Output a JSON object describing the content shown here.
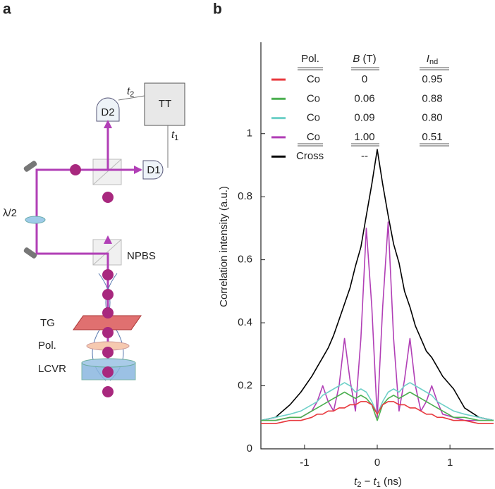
{
  "panel_labels": [
    "a",
    "b"
  ],
  "panel_a": {
    "detector_2": "D2",
    "detector_1": "D1",
    "time_tagger": "TT",
    "t2": {
      "t": "t",
      "sub": "2"
    },
    "t1": {
      "t": "t",
      "sub": "1"
    },
    "half_wave_plate": "λ/2",
    "beam_splitter": "NPBS",
    "grating": "TG",
    "polarizer": "Pol.",
    "lcvr": "LCVR"
  },
  "chart_data": {
    "type": "line",
    "xlabel": {
      "t2": "t",
      "t2_sub": "2",
      "minus": " − ",
      "t1": "t",
      "t1_sub": "1",
      "unit": " (ns)"
    },
    "ylabel": "Correlation intensity (a.u.)",
    "legend_header": {
      "pol": "Pol.",
      "field": "B",
      "field_unit": " (T)",
      "ind": "I",
      "ind_sub": "nd"
    },
    "x": [
      -1.6,
      -1.4,
      -1.2,
      -1.05,
      -0.9,
      -0.825,
      -0.75,
      -0.675,
      -0.6,
      -0.525,
      -0.45,
      -0.375,
      -0.3,
      -0.225,
      -0.15,
      -0.075,
      0,
      0.075,
      0.15,
      0.225,
      0.3,
      0.375,
      0.45,
      0.525,
      0.6,
      0.675,
      0.75,
      0.825,
      0.9,
      1.05,
      1.2,
      1.4,
      1.6
    ],
    "series": [
      {
        "name": "Co",
        "field": "0",
        "i_nd": "0.95",
        "color": "#e8383d",
        "values": [
          0.08,
          0.08,
          0.09,
          0.09,
          0.1,
          0.11,
          0.11,
          0.12,
          0.12,
          0.13,
          0.13,
          0.14,
          0.14,
          0.15,
          0.15,
          0.14,
          0.11,
          0.14,
          0.15,
          0.15,
          0.14,
          0.14,
          0.13,
          0.13,
          0.12,
          0.11,
          0.11,
          0.1,
          0.1,
          0.09,
          0.09,
          0.08,
          0.08
        ]
      },
      {
        "name": "Co",
        "field": "0.06",
        "i_nd": "0.88",
        "color": "#4caf50",
        "values": [
          0.09,
          0.09,
          0.1,
          0.1,
          0.12,
          0.13,
          0.14,
          0.15,
          0.16,
          0.17,
          0.18,
          0.17,
          0.16,
          0.17,
          0.16,
          0.14,
          0.09,
          0.14,
          0.16,
          0.17,
          0.16,
          0.17,
          0.18,
          0.17,
          0.16,
          0.15,
          0.14,
          0.13,
          0.12,
          0.1,
          0.1,
          0.09,
          0.09
        ]
      },
      {
        "name": "Co",
        "field": "0.09",
        "i_nd": "0.80",
        "color": "#6fd0c8",
        "values": [
          0.09,
          0.1,
          0.11,
          0.12,
          0.14,
          0.15,
          0.17,
          0.18,
          0.19,
          0.2,
          0.21,
          0.2,
          0.18,
          0.19,
          0.18,
          0.15,
          0.11,
          0.15,
          0.18,
          0.19,
          0.18,
          0.2,
          0.21,
          0.2,
          0.19,
          0.18,
          0.17,
          0.15,
          0.14,
          0.12,
          0.11,
          0.1,
          0.09
        ]
      },
      {
        "name": "Co",
        "field": "1.00",
        "i_nd": "0.51",
        "color": "#b13fb6",
        "values": [
          0.09,
          0.09,
          0.1,
          0.1,
          0.12,
          0.15,
          0.2,
          0.15,
          0.12,
          0.2,
          0.35,
          0.22,
          0.12,
          0.35,
          0.7,
          0.45,
          0.1,
          0.45,
          0.72,
          0.35,
          0.12,
          0.22,
          0.35,
          0.2,
          0.12,
          0.15,
          0.2,
          0.15,
          0.11,
          0.1,
          0.09,
          0.09,
          0.09
        ]
      },
      {
        "name": "Cross",
        "field": "--",
        "color": "#000000",
        "values": [
          0.09,
          0.1,
          0.14,
          0.18,
          0.23,
          0.26,
          0.29,
          0.32,
          0.36,
          0.41,
          0.46,
          0.51,
          0.58,
          0.64,
          0.74,
          0.84,
          0.95,
          0.84,
          0.74,
          0.65,
          0.59,
          0.5,
          0.45,
          0.39,
          0.35,
          0.31,
          0.29,
          0.26,
          0.23,
          0.19,
          0.13,
          0.1,
          0.09
        ]
      }
    ],
    "xlim": [
      -1.6,
      1.6
    ],
    "xticks": [
      -1,
      0,
      1
    ],
    "ylim": [
      0,
      1.29
    ],
    "yticks": [
      0,
      0.2,
      0.4,
      0.6,
      0.8,
      1
    ]
  }
}
